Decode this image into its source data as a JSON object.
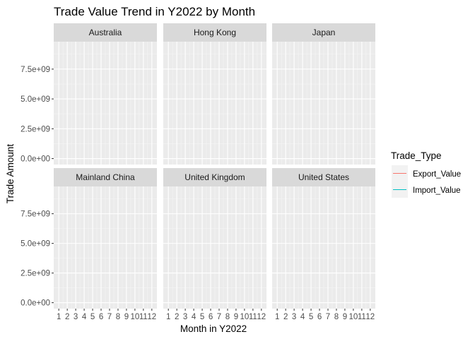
{
  "chart_data": {
    "type": "line",
    "title": "Trade Value Trend in Y2022 by Month",
    "xlabel": "Month in Y2022",
    "ylabel": "Trade Amount",
    "x": [
      1,
      2,
      3,
      4,
      5,
      6,
      7,
      8,
      9,
      10,
      11,
      12
    ],
    "x_tick_labels": [
      "1",
      "2",
      "3",
      "4",
      "5",
      "6",
      "7",
      "8",
      "9",
      "10",
      "11",
      "12"
    ],
    "y_ticks": [
      0,
      2500000000,
      5000000000,
      7500000000
    ],
    "y_tick_labels": [
      "0.0e+00",
      "2.5e+09",
      "5.0e+09",
      "7.5e+09"
    ],
    "ylim": [
      -500000000,
      9800000000
    ],
    "facet_layout": "2x3 grid",
    "facets": [
      {
        "name": "Australia",
        "series": [
          {
            "name": "Export_Value",
            "values": []
          },
          {
            "name": "Import_Value",
            "values": []
          }
        ]
      },
      {
        "name": "Hong Kong",
        "series": [
          {
            "name": "Export_Value",
            "values": []
          },
          {
            "name": "Import_Value",
            "values": []
          }
        ]
      },
      {
        "name": "Japan",
        "series": [
          {
            "name": "Export_Value",
            "values": []
          },
          {
            "name": "Import_Value",
            "values": []
          }
        ]
      },
      {
        "name": "Mainland China",
        "series": [
          {
            "name": "Export_Value",
            "values": []
          },
          {
            "name": "Import_Value",
            "values": []
          }
        ]
      },
      {
        "name": "United Kingdom",
        "series": [
          {
            "name": "Export_Value",
            "values": []
          },
          {
            "name": "Import_Value",
            "values": []
          }
        ]
      },
      {
        "name": "United States",
        "series": [
          {
            "name": "Export_Value",
            "values": []
          },
          {
            "name": "Import_Value",
            "values": []
          }
        ]
      }
    ],
    "legend": {
      "title": "Trade_Type",
      "placement": "right",
      "entries": [
        {
          "label": "Export_Value",
          "color": "#f8766d"
        },
        {
          "label": "Import_Value",
          "color": "#00bfc4"
        }
      ]
    },
    "grid": true,
    "panel_background": "#ebebeb",
    "strip_background": "#d9d9d9"
  }
}
